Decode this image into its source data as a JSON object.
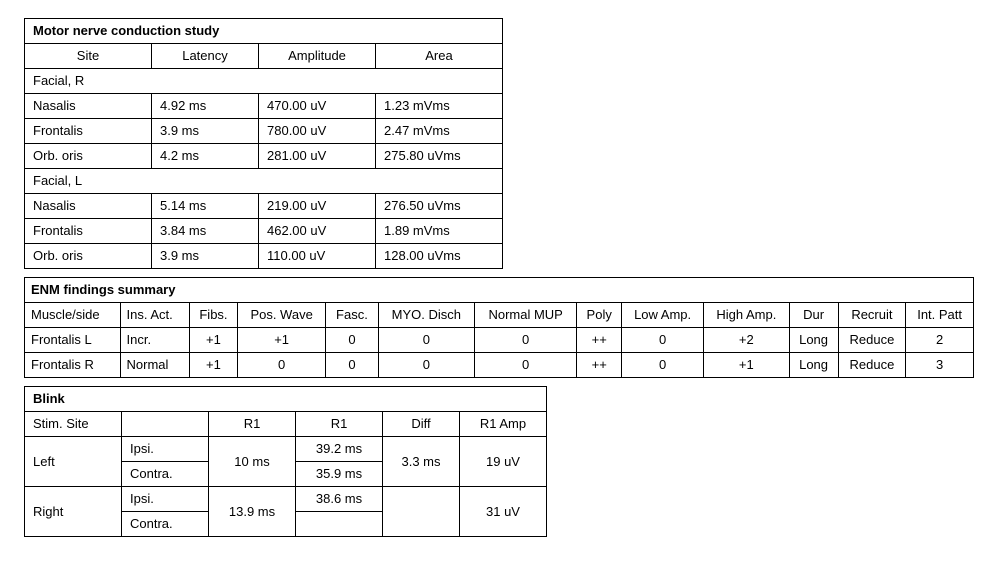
{
  "motor": {
    "title": "Motor nerve conduction study",
    "columns": [
      "Site",
      "Latency",
      "Amplitude",
      "Area"
    ],
    "section1": "Facial, R",
    "r": [
      {
        "site": "Nasalis",
        "lat": "4.92 ms",
        "amp": "470.00 uV",
        "area": "1.23 mVms"
      },
      {
        "site": "Frontalis",
        "lat": "3.9 ms",
        "amp": "780.00 uV",
        "area": "2.47 mVms"
      },
      {
        "site": "Orb. oris",
        "lat": "4.2 ms",
        "amp": "281.00 uV",
        "area": "275.80 uVms"
      }
    ],
    "section2": "Facial, L",
    "l": [
      {
        "site": "Nasalis",
        "lat": "5.14 ms",
        "amp": "219.00 uV",
        "area": "276.50 uVms"
      },
      {
        "site": "Frontalis",
        "lat": "3.84 ms",
        "amp": "462.00 uV",
        "area": "1.89 mVms"
      },
      {
        "site": "Orb. oris",
        "lat": "3.9 ms",
        "amp": "110.00 uV",
        "area": "128.00 uVms"
      }
    ]
  },
  "enm": {
    "title": "ENM findings summary",
    "columns": [
      "Muscle/side",
      "Ins. Act.",
      "Fibs.",
      "Pos. Wave",
      "Fasc.",
      "MYO. Disch",
      "Normal MUP",
      "Poly",
      "Low Amp.",
      "High Amp.",
      "Dur",
      "Recruit",
      "Int. Patt"
    ],
    "rows": [
      [
        "Frontalis L",
        "Incr.",
        "+1",
        "+1",
        "0",
        "0",
        "0",
        "++",
        "0",
        "+2",
        "Long",
        "Reduce",
        "2"
      ],
      [
        "Frontalis R",
        "Normal",
        "+1",
        "0",
        "0",
        "0",
        "0",
        "++",
        "0",
        "+1",
        "Long",
        "Reduce",
        "3"
      ]
    ]
  },
  "blink": {
    "title": "Blink",
    "columns": [
      "Stim. Site",
      "",
      "R1",
      "R1",
      "Diff",
      "R1 Amp"
    ],
    "left_label": "Left",
    "right_label": "Right",
    "ipsi": "Ipsi.",
    "contra": "Contra.",
    "left": {
      "r1a": "10 ms",
      "r1b_ipsi": "39.2 ms",
      "r1b_contra": "35.9 ms",
      "diff": "3.3 ms",
      "amp": "19 uV"
    },
    "right": {
      "r1a": "13.9 ms",
      "r1b_ipsi": "38.6 ms",
      "r1b_contra": "",
      "diff": "",
      "amp": "31 uV"
    }
  }
}
